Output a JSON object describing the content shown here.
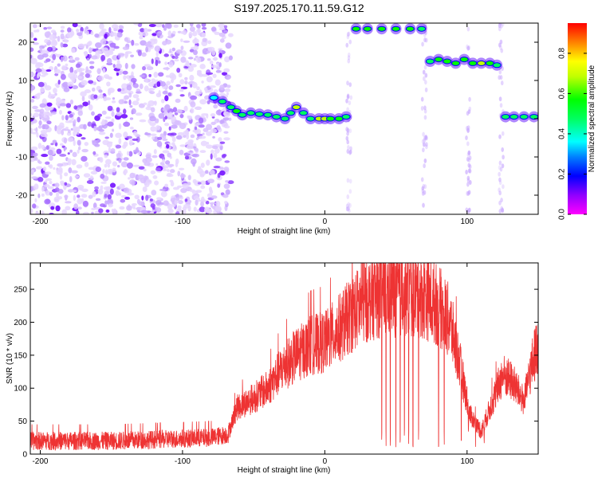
{
  "title": "S197.2025.170.11.59.G12",
  "chart_data": [
    {
      "type": "heatmap",
      "xlabel": "Height of straight line (km)",
      "ylabel": "Frequency (Hz)",
      "xlim": [
        -207,
        150
      ],
      "ylim": [
        -25,
        25
      ],
      "xticks": [
        -200,
        -100,
        0,
        100
      ],
      "yticks": [
        -20,
        -10,
        0,
        10,
        20
      ],
      "xtick_labels": [
        "-200",
        "-100",
        "0",
        "100"
      ],
      "ytick_labels": [
        "-20",
        "-10",
        "0",
        "10",
        "20"
      ],
      "colorbar": {
        "label": "Normalized spectral amplitude",
        "range": [
          0,
          0.95
        ],
        "ticks": [
          0.0,
          0.2,
          0.4,
          0.6,
          0.8
        ],
        "tick_labels": [
          "0.0",
          "0.2",
          "0.4",
          "0.6",
          "0.8"
        ],
        "colormap": [
          "#ffffff",
          "#e0c8ff",
          "#9a40ff",
          "#5000ff",
          "#0000ff",
          "#0080ff",
          "#00ffff",
          "#00ff80",
          "#00ff00",
          "#80ff00",
          "#ffff00",
          "#ff8000",
          "#ff0000",
          "#ff00ff"
        ]
      },
      "noise_region_x": [
        -207,
        -72
      ],
      "ridge": [
        {
          "x": -78,
          "y": 5.5,
          "amp": 0.35
        },
        {
          "x": -72,
          "y": 4.5,
          "amp": 0.4
        },
        {
          "x": -66,
          "y": 3,
          "amp": 0.45
        },
        {
          "x": -62,
          "y": 2,
          "amp": 0.55
        },
        {
          "x": -58,
          "y": 1,
          "amp": 0.5
        },
        {
          "x": -52,
          "y": 1.5,
          "amp": 0.45
        },
        {
          "x": -46,
          "y": 1.2,
          "amp": 0.45
        },
        {
          "x": -40,
          "y": 1,
          "amp": 0.5
        },
        {
          "x": -34,
          "y": 0.5,
          "amp": 0.5
        },
        {
          "x": -28,
          "y": 0,
          "amp": 0.5
        },
        {
          "x": -24,
          "y": 1.5,
          "amp": 0.5
        },
        {
          "x": -20,
          "y": 3,
          "amp": 0.7
        },
        {
          "x": -15,
          "y": 1.5,
          "amp": 0.5
        },
        {
          "x": -10,
          "y": 0,
          "amp": 0.5
        },
        {
          "x": -4,
          "y": 0,
          "amp": 0.65
        },
        {
          "x": 0,
          "y": 0,
          "amp": 0.7
        },
        {
          "x": 4,
          "y": 0,
          "amp": 0.6
        },
        {
          "x": 10,
          "y": 0,
          "amp": 0.55
        },
        {
          "x": 15,
          "y": 0.5,
          "amp": 0.5
        },
        {
          "x": 22,
          "y": 23.5,
          "amp": 0.55
        },
        {
          "x": 30,
          "y": 23.5,
          "amp": 0.6
        },
        {
          "x": 40,
          "y": 23.5,
          "amp": 0.6
        },
        {
          "x": 50,
          "y": 23.5,
          "amp": 0.6
        },
        {
          "x": 60,
          "y": 23.5,
          "amp": 0.55
        },
        {
          "x": 68,
          "y": 23.5,
          "amp": 0.5
        },
        {
          "x": 74,
          "y": 15,
          "amp": 0.5
        },
        {
          "x": 80,
          "y": 15.5,
          "amp": 0.55
        },
        {
          "x": 86,
          "y": 15,
          "amp": 0.6
        },
        {
          "x": 92,
          "y": 14.5,
          "amp": 0.55
        },
        {
          "x": 98,
          "y": 15.5,
          "amp": 0.55
        },
        {
          "x": 104,
          "y": 14.5,
          "amp": 0.55
        },
        {
          "x": 110,
          "y": 14.5,
          "amp": 0.65
        },
        {
          "x": 116,
          "y": 14.5,
          "amp": 0.6
        },
        {
          "x": 121,
          "y": 14,
          "amp": 0.5
        },
        {
          "x": 127,
          "y": 0.5,
          "amp": 0.45
        },
        {
          "x": 133,
          "y": 0.5,
          "amp": 0.45
        },
        {
          "x": 140,
          "y": 0.5,
          "amp": 0.45
        },
        {
          "x": 147,
          "y": 0.5,
          "amp": 0.4
        }
      ]
    },
    {
      "type": "line",
      "xlabel": "Height of straight line (km)",
      "ylabel": "SNR (10 * v/v)",
      "xlim": [
        -207,
        150
      ],
      "ylim": [
        0,
        290
      ],
      "xticks": [
        -200,
        -100,
        0,
        100
      ],
      "yticks": [
        0,
        50,
        100,
        150,
        200,
        250
      ],
      "xtick_labels": [
        "-200",
        "-100",
        "0",
        "100"
      ],
      "ytick_labels": [
        "0",
        "50",
        "100",
        "150",
        "200",
        "250"
      ],
      "series": [
        {
          "color": "#ee3333",
          "envelope": [
            {
              "x": -207,
              "y": 20
            },
            {
              "x": -180,
              "y": 20
            },
            {
              "x": -150,
              "y": 20
            },
            {
              "x": -120,
              "y": 22
            },
            {
              "x": -80,
              "y": 25
            },
            {
              "x": -68,
              "y": 30
            },
            {
              "x": -62,
              "y": 70
            },
            {
              "x": -50,
              "y": 85
            },
            {
              "x": -40,
              "y": 100
            },
            {
              "x": -30,
              "y": 130
            },
            {
              "x": -20,
              "y": 150
            },
            {
              "x": -10,
              "y": 165
            },
            {
              "x": 0,
              "y": 170
            },
            {
              "x": 10,
              "y": 190
            },
            {
              "x": 20,
              "y": 215
            },
            {
              "x": 30,
              "y": 235
            },
            {
              "x": 40,
              "y": 245
            },
            {
              "x": 50,
              "y": 245
            },
            {
              "x": 60,
              "y": 245
            },
            {
              "x": 70,
              "y": 240
            },
            {
              "x": 80,
              "y": 225
            },
            {
              "x": 88,
              "y": 200
            },
            {
              "x": 95,
              "y": 135
            },
            {
              "x": 102,
              "y": 60
            },
            {
              "x": 110,
              "y": 35
            },
            {
              "x": 118,
              "y": 80
            },
            {
              "x": 125,
              "y": 120
            },
            {
              "x": 132,
              "y": 110
            },
            {
              "x": 140,
              "y": 80
            },
            {
              "x": 146,
              "y": 140
            },
            {
              "x": 150,
              "y": 170
            }
          ],
          "dropouts_x": [
            40,
            43,
            46,
            50,
            53,
            56,
            59,
            62,
            66,
            80,
            84,
            96,
            101,
            106,
            112
          ]
        }
      ]
    }
  ]
}
